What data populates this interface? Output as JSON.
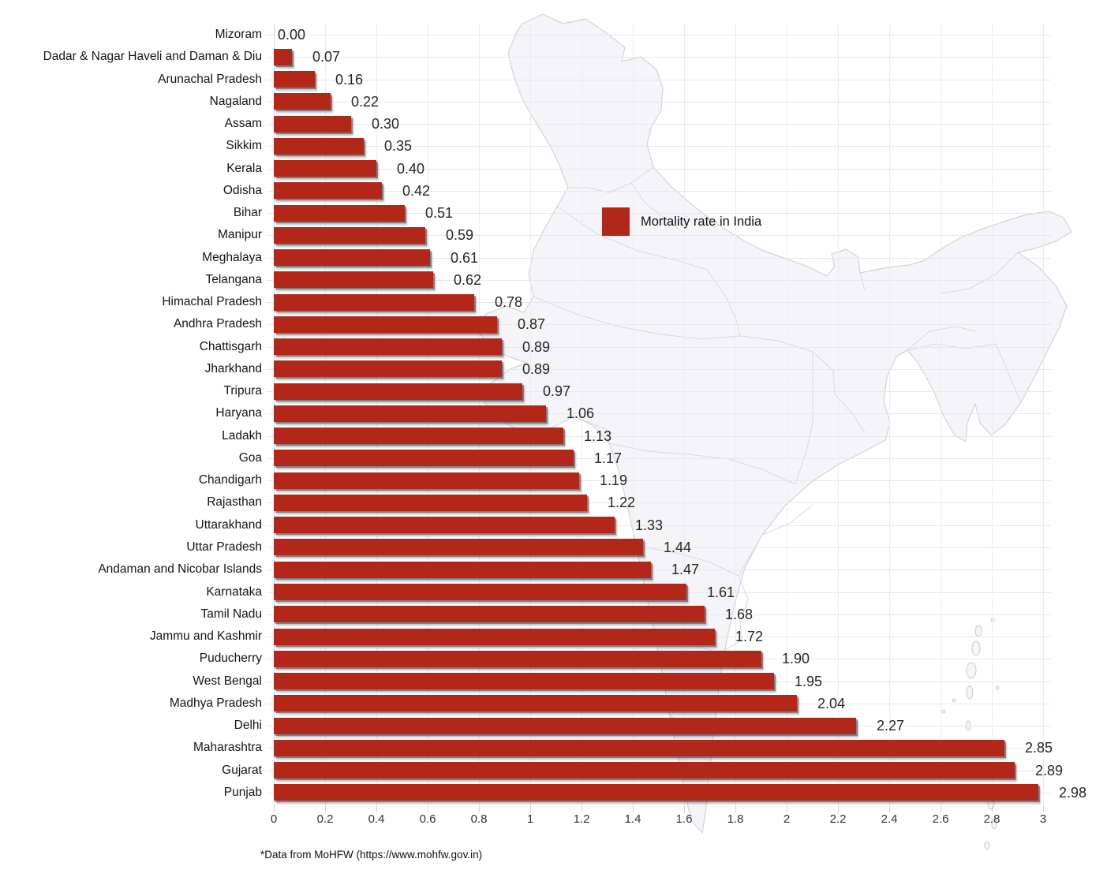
{
  "chart_data": {
    "type": "bar",
    "orientation": "horizontal",
    "title": "",
    "legend_label": "Mortality rate in India",
    "footnote": "*Data from MoHFW (https://www.mohfw.gov.in)",
    "categories": [
      "Mizoram",
      "Dadar & Nagar Haveli and Daman & Diu",
      "Arunachal Pradesh",
      "Nagaland",
      "Assam",
      "Sikkim",
      "Kerala",
      "Odisha",
      "Bihar",
      "Manipur",
      "Meghalaya",
      "Telangana",
      "Himachal Pradesh",
      "Andhra Pradesh",
      "Chattisgarh",
      "Jharkhand",
      "Tripura",
      "Haryana",
      "Ladakh",
      "Goa",
      "Chandigarh",
      "Rajasthan",
      "Uttarakhand",
      "Uttar Pradesh",
      "Andaman and Nicobar Islands",
      "Karnataka",
      "Tamil Nadu",
      "Jammu and Kashmir",
      "Puducherry",
      "West Bengal",
      "Madhya Pradesh",
      "Delhi",
      "Maharashtra",
      "Gujarat",
      "Punjab"
    ],
    "values": [
      0.0,
      0.07,
      0.16,
      0.22,
      0.3,
      0.35,
      0.4,
      0.42,
      0.51,
      0.59,
      0.61,
      0.62,
      0.78,
      0.87,
      0.89,
      0.89,
      0.97,
      1.06,
      1.13,
      1.17,
      1.19,
      1.22,
      1.33,
      1.44,
      1.47,
      1.61,
      1.68,
      1.72,
      1.9,
      1.95,
      2.04,
      2.27,
      2.85,
      2.89,
      2.98
    ],
    "value_labels": [
      "0.00",
      "0.07",
      "0.16",
      "0.22",
      "0.30",
      "0.35",
      "0.40",
      "0.42",
      "0.51",
      "0.59",
      "0.61",
      "0.62",
      "0.78",
      "0.87",
      "0.89",
      "0.89",
      "0.97",
      "1.06",
      "1.13",
      "1.17",
      "1.19",
      "1.22",
      "1.33",
      "1.44",
      "1.47",
      "1.61",
      "1.68",
      "1.72",
      "1.90",
      "1.95",
      "2.04",
      "2.27",
      "2.85",
      "2.89",
      "2.98"
    ],
    "xlim": [
      0,
      3
    ],
    "x_ticks": [
      "0",
      "0.2",
      "0.4",
      "0.6",
      "0.8",
      "1",
      "1.2",
      "1.4",
      "1.6",
      "1.8",
      "2",
      "2.2",
      "2.4",
      "2.6",
      "2.8",
      "3"
    ],
    "grid": true,
    "legend_position": "middle-of-plot",
    "background_map": "india-states-outline",
    "colors": {
      "bar": "#b3271b",
      "map_fill": "#f4f4f9",
      "map_border": "#d2d2dc",
      "hgrid": "#e8e8eb",
      "vgrid": "#ededf1",
      "label_text": "#141414",
      "value_text": "#262626",
      "tick_text": "#333333"
    }
  }
}
